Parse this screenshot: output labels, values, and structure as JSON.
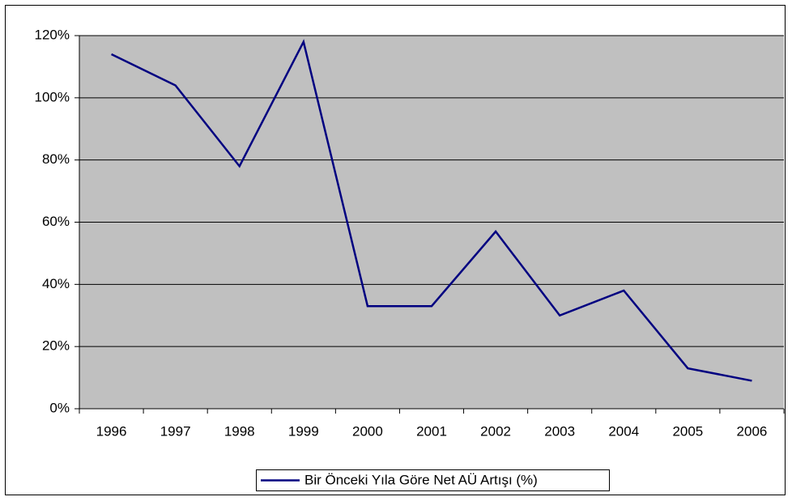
{
  "chart_data": {
    "type": "line",
    "categories": [
      "1996",
      "1997",
      "1998",
      "1999",
      "2000",
      "2001",
      "2002",
      "2003",
      "2004",
      "2005",
      "2006"
    ],
    "series": [
      {
        "name": "Bir Önceki Yıla Göre Net AÜ Artışı (%)",
        "color": "#000080",
        "values": [
          114,
          104,
          78,
          118,
          33,
          33,
          57,
          30,
          38,
          13,
          9
        ]
      }
    ],
    "ylim": [
      0,
      120
    ],
    "yticks": [
      {
        "value": 0,
        "label": "0%"
      },
      {
        "value": 20,
        "label": "20%"
      },
      {
        "value": 40,
        "label": "40%"
      },
      {
        "value": 60,
        "label": "60%"
      },
      {
        "value": 80,
        "label": "80%"
      },
      {
        "value": 100,
        "label": "100%"
      },
      {
        "value": 120,
        "label": "120%"
      }
    ],
    "grid": true,
    "legend": "bottom",
    "plot_background": "#c0c0c0"
  }
}
